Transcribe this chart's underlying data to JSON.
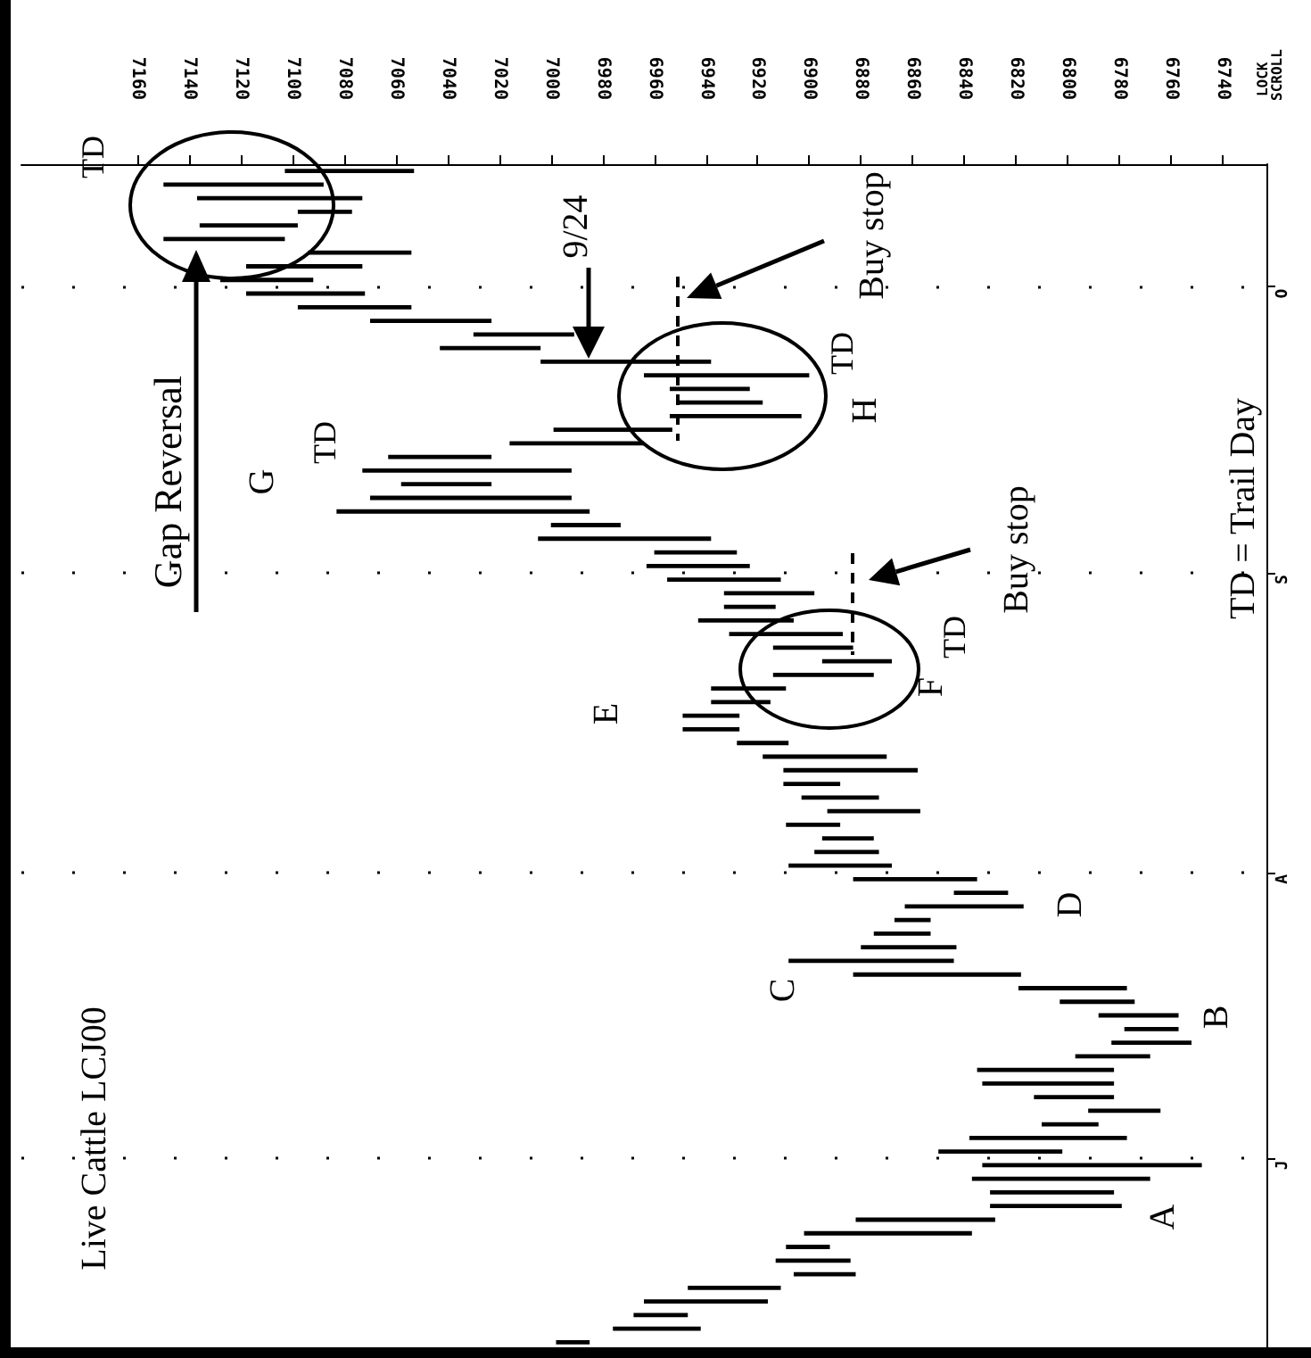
{
  "chart_data": {
    "type": "bar",
    "orientation": "horizontal",
    "title": "Live Cattle LCJ00",
    "categories": [
      null,
      null,
      null,
      null,
      null,
      null,
      null,
      null,
      null,
      "O",
      null,
      null,
      null,
      null,
      null,
      null,
      null,
      null,
      null,
      null,
      null,
      null,
      null,
      null,
      null,
      null,
      null,
      null,
      null,
      null,
      "S",
      null,
      null,
      null,
      null,
      null,
      null,
      null,
      null,
      null,
      null,
      null,
      null,
      null,
      null,
      null,
      null,
      null,
      null,
      null,
      null,
      null,
      "A",
      null,
      null,
      null,
      null,
      null,
      null,
      null,
      null,
      null,
      null,
      null,
      null,
      null,
      null,
      null,
      null,
      null,
      null,
      null,
      null,
      "J",
      null,
      null,
      null,
      null,
      null,
      null,
      null,
      null,
      null,
      null,
      null,
      null,
      null
    ],
    "base": [
      7053,
      7088,
      7073,
      7077,
      7098,
      7103,
      7054,
      7073,
      7092,
      7072,
      7054,
      7023,
      6991,
      7004,
      6938,
      6900,
      6923,
      6918,
      6903,
      6953,
      6964,
      7023,
      6992,
      7023,
      6992,
      6985,
      6973,
      6938,
      6928,
      6923,
      6911,
      6898,
      6913,
      6906,
      6887,
      6883,
      6868,
      6875,
      6909,
      6915,
      6927,
      6927,
      6908,
      6870,
      6858,
      6888,
      6873,
      6857,
      6888,
      6875,
      6873,
      6868,
      6835,
      6823,
      6817,
      6853,
      6853,
      6843,
      6844,
      6818,
      6777,
      6774,
      6757,
      6757,
      6752,
      6768,
      6782,
      6782,
      6782,
      6764,
      6788,
      6777,
      6802,
      6748,
      6768,
      6782,
      6779,
      6828,
      6837,
      6892,
      6884,
      6882,
      6911,
      6916,
      6947,
      6942,
      6985
    ],
    "values": [
      50,
      62,
      64,
      21,
      38,
      47,
      40,
      45,
      36,
      46,
      44,
      47,
      39,
      39,
      66,
      64,
      31,
      33,
      51,
      46,
      52,
      40,
      81,
      35,
      78,
      98,
      27,
      67,
      32,
      40,
      44,
      35,
      20,
      37,
      44,
      31,
      27,
      39,
      29,
      23,
      22,
      22,
      20,
      48,
      52,
      22,
      30,
      36,
      21,
      20,
      25,
      40,
      48,
      21,
      46,
      14,
      22,
      37,
      64,
      65,
      42,
      29,
      31,
      21,
      31,
      29,
      53,
      51,
      31,
      28,
      22,
      61,
      48,
      85,
      69,
      48,
      51,
      54,
      65,
      17,
      29,
      24,
      36,
      48,
      21,
      34,
      13
    ],
    "color": "#000000",
    "xlim": [
      7205,
      6723
    ],
    "xticks": [
      7160,
      7140,
      7120,
      7100,
      7080,
      7060,
      7040,
      7020,
      7000,
      6980,
      6960,
      6940,
      6920,
      6900,
      6880,
      6860,
      6840,
      6820,
      6800,
      6780,
      6760,
      6740
    ],
    "grid": "y",
    "annotations": [
      "TD",
      "Gap Reversal",
      "G",
      "TD",
      "9/24",
      "H",
      "TD",
      "Buy stop",
      "E",
      "F",
      "TD",
      "Buy stop",
      "C",
      "D",
      "B",
      "A",
      "TD = Trail Day",
      "LOCK SCROLL"
    ]
  }
}
